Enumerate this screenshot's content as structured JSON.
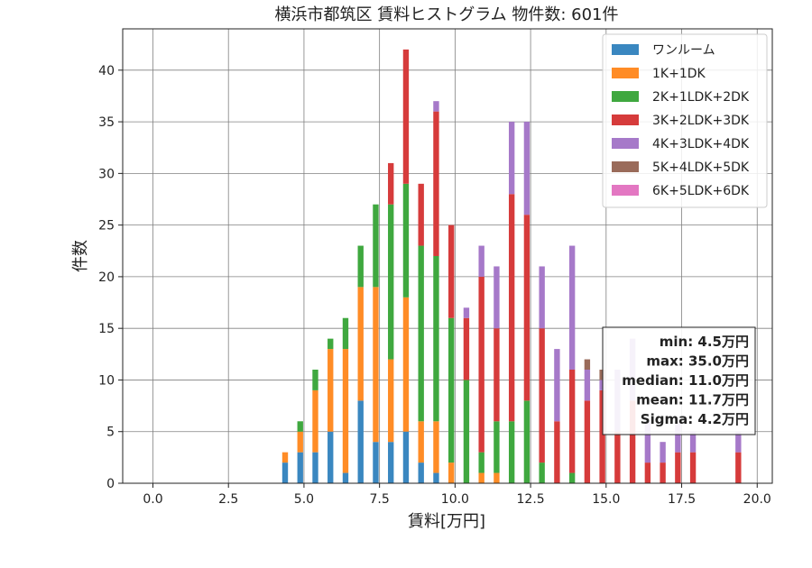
{
  "chart_data": {
    "type": "bar",
    "stacked": true,
    "title": "横浜市都筑区 賃料ヒストグラム 物件数: 601件",
    "xlabel": "賃料[万円]",
    "ylabel": "件数",
    "xlim": [
      -1.0,
      20.5
    ],
    "ylim": [
      0,
      44
    ],
    "xticks": [
      "0.0",
      "2.5",
      "5.0",
      "7.5",
      "10.0",
      "12.5",
      "15.0",
      "17.5",
      "20.0"
    ],
    "yticks": [
      "0",
      "5",
      "10",
      "15",
      "20",
      "25",
      "30",
      "35",
      "40"
    ],
    "grid": true,
    "legend_position": "top-right",
    "bin_width": 0.25,
    "bin_starts": [
      4.25,
      4.5,
      4.75,
      5.0,
      5.25,
      5.5,
      5.75,
      6.0,
      6.25,
      6.5,
      6.75,
      7.0,
      7.25,
      7.5,
      7.75,
      8.0,
      8.25,
      8.5,
      8.75,
      9.0,
      9.25,
      9.5,
      9.75,
      10.0,
      10.25,
      10.5,
      10.75,
      11.0,
      11.25,
      11.5,
      11.75,
      12.0,
      12.25,
      12.5,
      12.75,
      13.0,
      13.25,
      13.5,
      13.75,
      14.0,
      14.25,
      14.5,
      14.75,
      15.0,
      15.25,
      15.5,
      15.75,
      16.0,
      16.25,
      16.5,
      16.75,
      17.0,
      17.25,
      17.5,
      17.75,
      18.0,
      18.25,
      18.5,
      18.75,
      19.0,
      19.25,
      19.5,
      19.75
    ],
    "series": [
      {
        "name": "ワンルーム",
        "color": "#3a87c0",
        "values": [
          2,
          0,
          3,
          0,
          3,
          0,
          5,
          0,
          1,
          0,
          8,
          0,
          4,
          0,
          4,
          0,
          5,
          0,
          2,
          0,
          1,
          0,
          0,
          0,
          0,
          0,
          0,
          0,
          0,
          0,
          0,
          0,
          0,
          0,
          0,
          0,
          0,
          0,
          0,
          0,
          0,
          0,
          0,
          0,
          0,
          0,
          0,
          0,
          0,
          0,
          0,
          0,
          0,
          0,
          0,
          0,
          0,
          0,
          0,
          0,
          0,
          0,
          0
        ]
      },
      {
        "name": "1K+1DK",
        "color": "#ff8c26",
        "values": [
          1,
          0,
          2,
          0,
          6,
          0,
          8,
          0,
          12,
          0,
          11,
          0,
          15,
          0,
          8,
          0,
          13,
          0,
          4,
          0,
          5,
          0,
          2,
          0,
          0,
          0,
          1,
          0,
          1,
          0,
          0,
          0,
          0,
          0,
          0,
          0,
          0,
          0,
          0,
          0,
          0,
          0,
          0,
          0,
          0,
          0,
          0,
          0,
          0,
          0,
          0,
          0,
          0,
          0,
          0,
          0,
          0,
          0,
          0,
          0,
          0,
          0,
          0
        ]
      },
      {
        "name": "2K+1LDK+2DK",
        "color": "#3fa83f",
        "values": [
          0,
          0,
          1,
          0,
          2,
          0,
          1,
          0,
          3,
          0,
          4,
          0,
          8,
          0,
          15,
          0,
          11,
          0,
          17,
          0,
          16,
          0,
          14,
          0,
          10,
          0,
          2,
          0,
          5,
          0,
          6,
          0,
          8,
          0,
          2,
          0,
          0,
          0,
          1,
          0,
          0,
          0,
          0,
          0,
          0,
          0,
          0,
          0,
          0,
          0,
          0,
          0,
          0,
          0,
          0,
          0,
          0,
          0,
          0,
          0,
          0,
          0,
          0
        ]
      },
      {
        "name": "3K+2LDK+3DK",
        "color": "#d63b3b",
        "values": [
          0,
          0,
          0,
          0,
          0,
          0,
          0,
          0,
          0,
          0,
          0,
          0,
          0,
          0,
          4,
          0,
          13,
          0,
          6,
          0,
          14,
          0,
          9,
          0,
          6,
          0,
          17,
          0,
          9,
          0,
          22,
          0,
          18,
          0,
          13,
          0,
          6,
          0,
          10,
          0,
          8,
          0,
          9,
          0,
          5,
          0,
          8,
          0,
          2,
          0,
          2,
          0,
          3,
          0,
          3,
          0,
          0,
          0,
          0,
          0,
          3,
          0,
          0
        ]
      },
      {
        "name": "4K+3LDK+4DK",
        "color": "#a679c9",
        "values": [
          0,
          0,
          0,
          0,
          0,
          0,
          0,
          0,
          0,
          0,
          0,
          0,
          0,
          0,
          0,
          0,
          0,
          0,
          0,
          0,
          1,
          0,
          0,
          0,
          1,
          0,
          3,
          0,
          6,
          0,
          7,
          0,
          9,
          0,
          6,
          0,
          7,
          0,
          12,
          0,
          3,
          0,
          1,
          0,
          6,
          0,
          6,
          0,
          4,
          0,
          2,
          0,
          3,
          0,
          2,
          0,
          0,
          0,
          0,
          0,
          2,
          0,
          0
        ]
      },
      {
        "name": "5K+4LDK+5DK",
        "color": "#9a6b5a",
        "values": [
          0,
          0,
          0,
          0,
          0,
          0,
          0,
          0,
          0,
          0,
          0,
          0,
          0,
          0,
          0,
          0,
          0,
          0,
          0,
          0,
          0,
          0,
          0,
          0,
          0,
          0,
          0,
          0,
          0,
          0,
          0,
          0,
          0,
          0,
          0,
          0,
          0,
          0,
          0,
          0,
          1,
          0,
          1,
          0,
          0,
          0,
          0,
          0,
          0,
          0,
          0,
          0,
          0,
          0,
          0,
          0,
          0,
          0,
          0,
          0,
          0,
          0,
          0
        ]
      },
      {
        "name": "6K+5LDK+6DK",
        "color": "#e377c2",
        "values": [
          0,
          0,
          0,
          0,
          0,
          0,
          0,
          0,
          0,
          0,
          0,
          0,
          0,
          0,
          0,
          0,
          0,
          0,
          0,
          0,
          0,
          0,
          0,
          0,
          0,
          0,
          0,
          0,
          0,
          0,
          0,
          0,
          0,
          0,
          0,
          0,
          0,
          0,
          0,
          0,
          0,
          0,
          0,
          0,
          0,
          0,
          0,
          0,
          0,
          0,
          0,
          0,
          0,
          0,
          0,
          0,
          0,
          0,
          0,
          0,
          0,
          0,
          0
        ]
      }
    ],
    "stats_box": {
      "lines": [
        "min: 4.5万円",
        "max: 35.0万円",
        "median: 11.0万円",
        "mean: 11.7万円",
        "Sigma: 4.2万円"
      ]
    }
  }
}
